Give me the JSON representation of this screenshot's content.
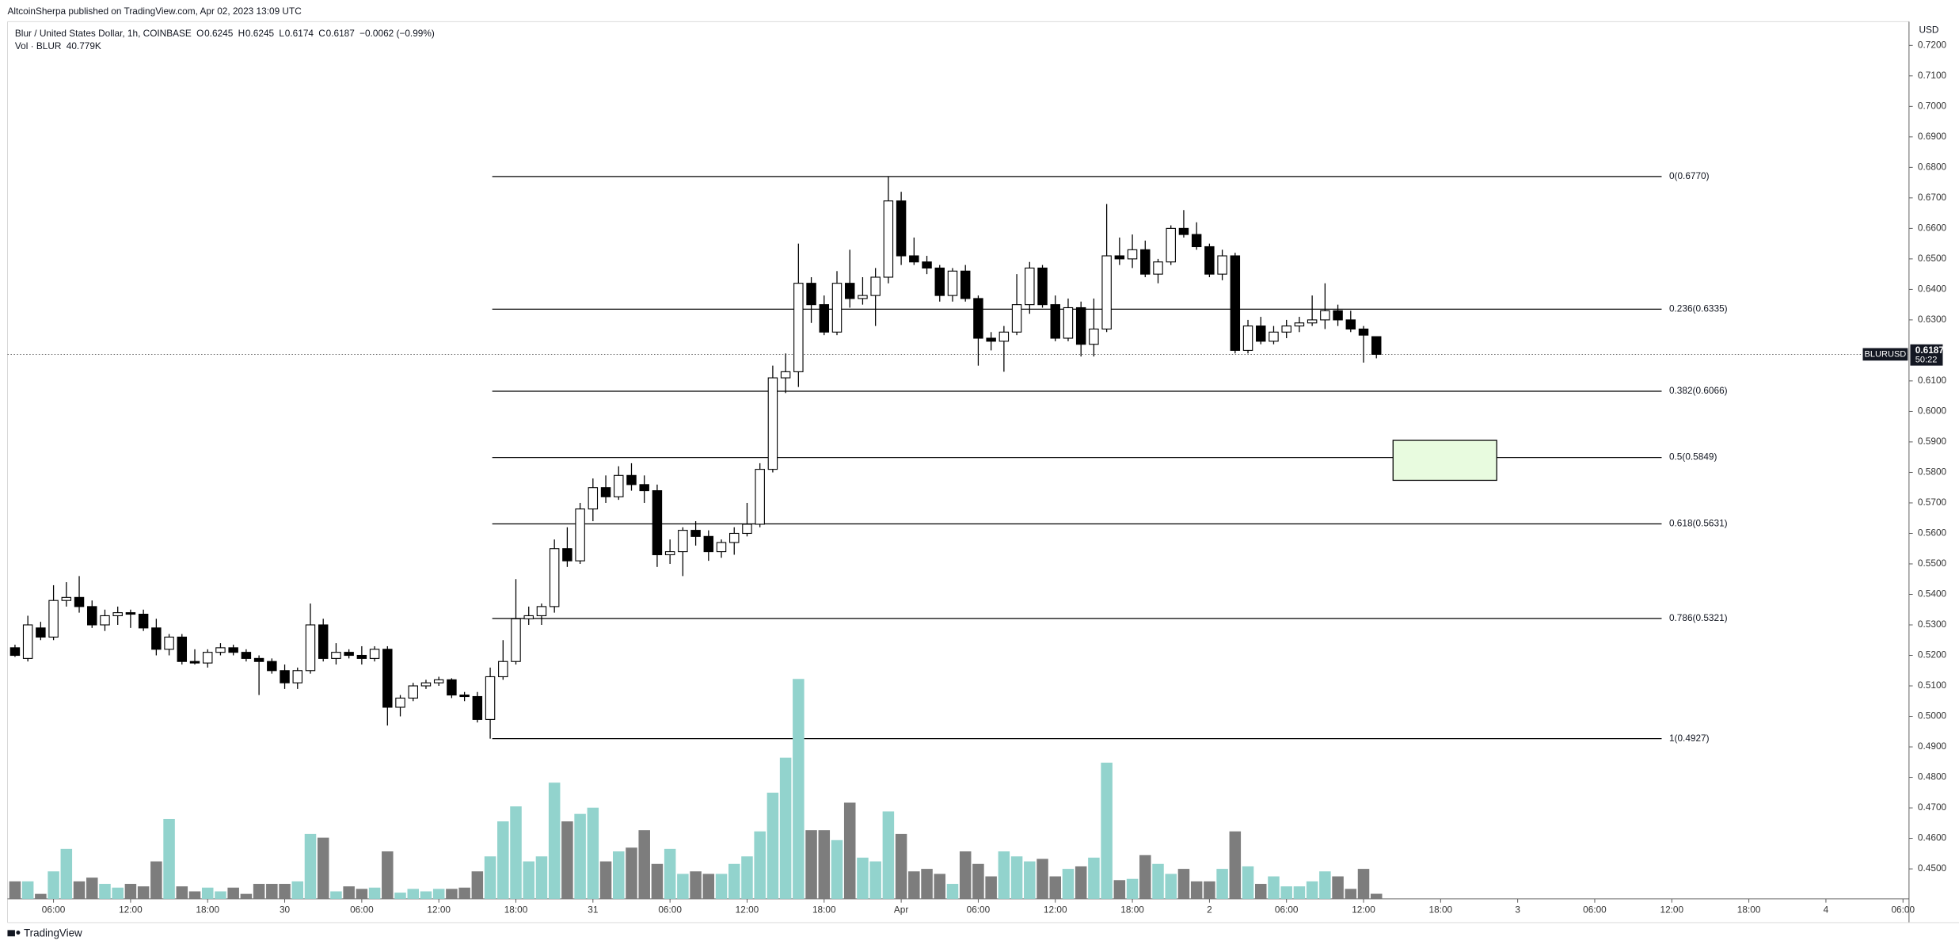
{
  "header": {
    "publisher": "AltcoinSherpa published on TradingView.com, Apr 02, 2023 13:09 UTC"
  },
  "footer": {
    "brand": "TradingView"
  },
  "chart_data": {
    "type": "candlestick",
    "title": "Blur / United States Dollar, 1h, COINBASE",
    "ohlc_labels": [
      "O",
      "H",
      "L",
      "C"
    ],
    "ohlc_values": [
      0.6245,
      0.6245,
      0.6174,
      0.6187
    ],
    "change": "−0.0062 (−0.99%)",
    "volume_title": "Vol · BLUR",
    "volume_label": "40.779K",
    "y_unit": "USD",
    "ylim": [
      0.45,
      0.72
    ],
    "yticks": [
      {
        "value": 0.72,
        "label": "0.7200"
      },
      {
        "value": 0.71,
        "label": "0.7100"
      },
      {
        "value": 0.7,
        "label": "0.7000"
      },
      {
        "value": 0.69,
        "label": "0.6900"
      },
      {
        "value": 0.68,
        "label": "0.6800"
      },
      {
        "value": 0.67,
        "label": "0.6700"
      },
      {
        "value": 0.66,
        "label": "0.6600"
      },
      {
        "value": 0.65,
        "label": "0.6500"
      },
      {
        "value": 0.64,
        "label": "0.6400"
      },
      {
        "value": 0.63,
        "label": "0.6300"
      },
      {
        "value": 0.61,
        "label": "0.6100"
      },
      {
        "value": 0.6,
        "label": "0.6000"
      },
      {
        "value": 0.59,
        "label": "0.5900"
      },
      {
        "value": 0.58,
        "label": "0.5800"
      },
      {
        "value": 0.57,
        "label": "0.5700"
      },
      {
        "value": 0.56,
        "label": "0.5600"
      },
      {
        "value": 0.55,
        "label": "0.5500"
      },
      {
        "value": 0.54,
        "label": "0.5400"
      },
      {
        "value": 0.53,
        "label": "0.5300"
      },
      {
        "value": 0.52,
        "label": "0.5200"
      },
      {
        "value": 0.51,
        "label": "0.5100"
      },
      {
        "value": 0.5,
        "label": "0.5000"
      },
      {
        "value": 0.49,
        "label": "0.4900"
      },
      {
        "value": 0.48,
        "label": "0.4800"
      },
      {
        "value": 0.47,
        "label": "0.4700"
      },
      {
        "value": 0.46,
        "label": "0.4600"
      },
      {
        "value": 0.45,
        "label": "0.4500"
      }
    ],
    "time_labels": [
      "06:00",
      "12:00",
      "18:00",
      "30",
      "06:00",
      "12:00",
      "18:00",
      "31",
      "06:00",
      "12:00",
      "18:00",
      "Apr",
      "06:00",
      "12:00",
      "18:00",
      "2",
      "06:00",
      "12:00",
      "18:00",
      "3",
      "06:00",
      "12:00",
      "18:00",
      "4",
      "06:00"
    ],
    "open": [
      0.5225,
      0.519,
      0.529,
      0.526,
      0.538,
      0.539,
      0.536,
      0.53,
      0.533,
      0.534,
      0.5335,
      0.529,
      0.522,
      0.526,
      0.518,
      0.5175,
      0.521,
      0.5225,
      0.521,
      0.519,
      0.518,
      0.515,
      0.511,
      0.515,
      0.53,
      0.519,
      0.521,
      0.52,
      0.519,
      0.522,
      0.503,
      0.506,
      0.51,
      0.511,
      0.512,
      0.507,
      0.5065,
      0.499,
      0.513,
      0.518,
      0.532,
      0.533,
      0.536,
      0.555,
      0.551,
      0.568,
      0.575,
      0.572,
      0.579,
      0.576,
      0.574,
      0.553,
      0.554,
      0.561,
      0.559,
      0.554,
      0.557,
      0.56,
      0.563,
      0.581,
      0.611,
      0.613,
      0.642,
      0.635,
      0.626,
      0.642,
      0.637,
      0.638,
      0.644,
      0.669,
      0.651,
      0.649,
      0.647,
      0.638,
      0.646,
      0.637,
      0.624,
      0.623,
      0.626,
      0.635,
      0.647,
      0.635,
      0.624,
      0.634,
      0.622,
      0.627,
      0.651,
      0.65,
      0.653,
      0.645,
      0.649,
      0.66,
      0.658,
      0.654,
      0.645,
      0.651,
      0.62,
      0.628,
      0.623,
      0.626,
      0.628,
      0.629,
      0.63,
      0.633,
      0.63,
      0.627,
      0.6245
    ],
    "high": [
      0.5235,
      0.533,
      0.531,
      0.543,
      0.544,
      0.546,
      0.538,
      0.535,
      0.536,
      0.535,
      0.535,
      0.532,
      0.527,
      0.527,
      0.522,
      0.522,
      0.524,
      0.5235,
      0.522,
      0.52,
      0.519,
      0.517,
      0.516,
      0.537,
      0.532,
      0.524,
      0.522,
      0.523,
      0.523,
      0.523,
      0.507,
      0.511,
      0.512,
      0.513,
      0.5125,
      0.508,
      0.508,
      0.516,
      0.525,
      0.545,
      0.536,
      0.537,
      0.558,
      0.562,
      0.57,
      0.578,
      0.579,
      0.582,
      0.583,
      0.579,
      0.576,
      0.558,
      0.562,
      0.564,
      0.561,
      0.558,
      0.562,
      0.57,
      0.583,
      0.615,
      0.619,
      0.655,
      0.644,
      0.638,
      0.646,
      0.653,
      0.644,
      0.647,
      0.677,
      0.672,
      0.657,
      0.651,
      0.648,
      0.647,
      0.648,
      0.638,
      0.626,
      0.628,
      0.645,
      0.649,
      0.648,
      0.638,
      0.637,
      0.636,
      0.637,
      0.668,
      0.657,
      0.658,
      0.656,
      0.65,
      0.661,
      0.666,
      0.662,
      0.655,
      0.653,
      0.652,
      0.63,
      0.631,
      0.628,
      0.63,
      0.631,
      0.638,
      0.642,
      0.635,
      0.633,
      0.628,
      0.6245
    ],
    "low": [
      0.5195,
      0.518,
      0.525,
      0.525,
      0.536,
      0.534,
      0.529,
      0.528,
      0.53,
      0.529,
      0.528,
      0.52,
      0.52,
      0.517,
      0.517,
      0.516,
      0.52,
      0.52,
      0.518,
      0.507,
      0.514,
      0.509,
      0.509,
      0.514,
      0.518,
      0.517,
      0.519,
      0.517,
      0.518,
      0.497,
      0.5,
      0.505,
      0.509,
      0.51,
      0.506,
      0.505,
      0.498,
      0.4927,
      0.512,
      0.517,
      0.53,
      0.53,
      0.534,
      0.549,
      0.55,
      0.564,
      0.57,
      0.571,
      0.574,
      0.57,
      0.549,
      0.55,
      0.546,
      0.556,
      0.551,
      0.552,
      0.553,
      0.559,
      0.562,
      0.58,
      0.606,
      0.608,
      0.629,
      0.625,
      0.625,
      0.634,
      0.635,
      0.628,
      0.642,
      0.648,
      0.648,
      0.645,
      0.636,
      0.636,
      0.636,
      0.615,
      0.62,
      0.613,
      0.625,
      0.632,
      0.634,
      0.623,
      0.623,
      0.618,
      0.618,
      0.626,
      0.648,
      0.647,
      0.644,
      0.642,
      0.648,
      0.657,
      0.653,
      0.644,
      0.643,
      0.619,
      0.619,
      0.622,
      0.622,
      0.624,
      0.626,
      0.628,
      0.627,
      0.628,
      0.626,
      0.616,
      0.6174
    ],
    "close": [
      0.52,
      0.53,
      0.526,
      0.538,
      0.539,
      0.536,
      0.53,
      0.533,
      0.534,
      0.5335,
      0.529,
      0.522,
      0.526,
      0.518,
      0.5175,
      0.521,
      0.5225,
      0.521,
      0.519,
      0.518,
      0.515,
      0.511,
      0.515,
      0.53,
      0.519,
      0.521,
      0.52,
      0.519,
      0.522,
      0.503,
      0.506,
      0.51,
      0.511,
      0.512,
      0.507,
      0.5065,
      0.499,
      0.513,
      0.518,
      0.532,
      0.533,
      0.536,
      0.555,
      0.551,
      0.568,
      0.575,
      0.572,
      0.579,
      0.576,
      0.574,
      0.553,
      0.554,
      0.561,
      0.559,
      0.554,
      0.557,
      0.56,
      0.563,
      0.581,
      0.611,
      0.613,
      0.642,
      0.635,
      0.626,
      0.642,
      0.637,
      0.638,
      0.644,
      0.669,
      0.651,
      0.649,
      0.647,
      0.638,
      0.646,
      0.637,
      0.624,
      0.623,
      0.626,
      0.635,
      0.647,
      0.635,
      0.624,
      0.634,
      0.622,
      0.627,
      0.651,
      0.65,
      0.653,
      0.645,
      0.649,
      0.66,
      0.658,
      0.654,
      0.645,
      0.651,
      0.62,
      0.628,
      0.623,
      0.626,
      0.628,
      0.629,
      0.63,
      0.633,
      0.63,
      0.627,
      0.625,
      0.6187
    ],
    "volume": [
      140,
      140,
      40,
      220,
      400,
      140,
      170,
      120,
      90,
      120,
      100,
      300,
      640,
      100,
      60,
      90,
      60,
      90,
      40,
      120,
      120,
      120,
      140,
      520,
      490,
      60,
      100,
      80,
      90,
      380,
      50,
      80,
      60,
      80,
      80,
      90,
      220,
      340,
      620,
      740,
      300,
      340,
      930,
      620,
      680,
      730,
      300,
      380,
      410,
      550,
      280,
      400,
      200,
      220,
      200,
      200,
      280,
      340,
      540,
      850,
      1130,
      1760,
      550,
      550,
      470,
      770,
      330,
      300,
      700,
      520,
      220,
      240,
      200,
      120,
      380,
      280,
      180,
      380,
      340,
      300,
      320,
      180,
      240,
      260,
      330,
      1090,
      150,
      160,
      350,
      280,
      200,
      240,
      140,
      140,
      240,
      540,
      260,
      120,
      180,
      100,
      100,
      140,
      220,
      180,
      80,
      240,
      40.779
    ],
    "up_color": "#ffffff",
    "down_color": "#000000",
    "outline_color": "#000000",
    "volume_up_color": "#92d3cd",
    "volume_down_color": "#7d7d7d",
    "fib_levels": [
      {
        "label": "0(0.6770)",
        "value": 0.677
      },
      {
        "label": "0.236(0.6335)",
        "value": 0.6335
      },
      {
        "label": "0.382(0.6066)",
        "value": 0.6066
      },
      {
        "label": "0.5(0.5849)",
        "value": 0.5849
      },
      {
        "label": "0.618(0.5631)",
        "value": 0.5631
      },
      {
        "label": "0.786(0.5321)",
        "value": 0.5321
      },
      {
        "label": "1(0.4927)",
        "value": 0.4927
      }
    ],
    "zone": {
      "top": 0.5905,
      "bottom": 0.5774,
      "color": "#e8fbdf"
    },
    "last_price_symbol": "BLURUSD",
    "last_price": 0.6187,
    "countdown": "50:22"
  }
}
